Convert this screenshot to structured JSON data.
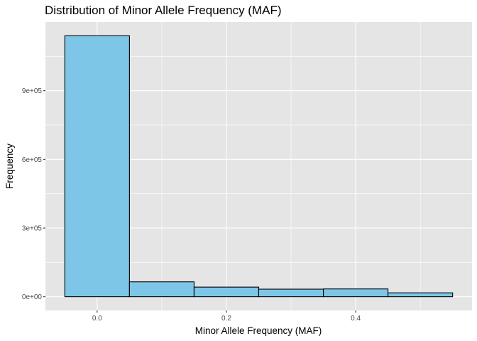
{
  "chart_data": {
    "type": "bar",
    "title": "Distribution of Minor Allele Frequency (MAF)",
    "xlabel": "Minor Allele Frequency (MAF)",
    "ylabel": "Frequency",
    "xlim": [
      -0.08,
      0.58
    ],
    "ylim": [
      -60000,
      1200000
    ],
    "x_ticks": [
      0.0,
      0.2,
      0.4
    ],
    "x_tick_labels": [
      "0.0",
      "0.2",
      "0.4"
    ],
    "y_ticks": [
      0,
      300000,
      600000,
      900000
    ],
    "y_tick_labels": [
      "0e+00",
      "3e+05",
      "6e+05",
      "9e+05"
    ],
    "bins": [
      {
        "x0": -0.05,
        "x1": 0.05,
        "value": 1140000
      },
      {
        "x0": 0.05,
        "x1": 0.15,
        "value": 65000
      },
      {
        "x0": 0.15,
        "x1": 0.25,
        "value": 42000
      },
      {
        "x0": 0.25,
        "x1": 0.35,
        "value": 33000
      },
      {
        "x0": 0.35,
        "x1": 0.45,
        "value": 34000
      },
      {
        "x0": 0.45,
        "x1": 0.55,
        "value": 17000
      }
    ],
    "grid": true,
    "colors": {
      "bar_fill": "#7EC6E8",
      "bar_stroke": "#000000",
      "panel_background": "#E5E5E5",
      "grid_major": "#FFFFFF"
    }
  }
}
